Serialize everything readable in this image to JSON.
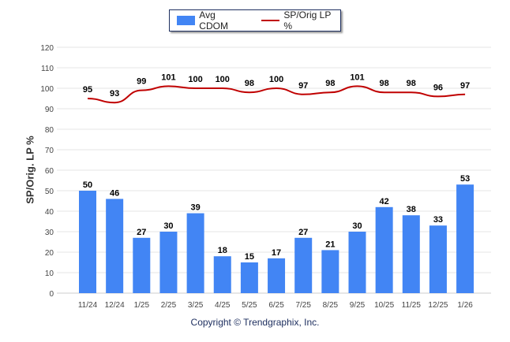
{
  "chart_data": {
    "type": "bar",
    "title": "",
    "xlabel": "",
    "ylabel": "SP/Orig. LP %",
    "ylim": [
      0,
      120
    ],
    "yticks": [
      0,
      10,
      20,
      30,
      40,
      50,
      60,
      70,
      80,
      90,
      100,
      110,
      120
    ],
    "grid": true,
    "legend_placement": "top-center",
    "categories": [
      "11/24",
      "12/24",
      "1/25",
      "2/25",
      "3/25",
      "4/25",
      "5/25",
      "6/25",
      "7/25",
      "8/25",
      "9/25",
      "10/25",
      "11/25",
      "12/25",
      "1/26"
    ],
    "series": [
      {
        "name": "Avg CDOM",
        "type": "bar",
        "color": "#4285f4",
        "values": [
          50,
          46,
          27,
          30,
          39,
          18,
          15,
          17,
          27,
          21,
          30,
          42,
          38,
          33,
          53
        ]
      },
      {
        "name": "SP/Orig LP %",
        "type": "line",
        "color": "#c00000",
        "values": [
          95,
          93,
          99,
          101,
          100,
          100,
          98,
          100,
          97,
          98,
          101,
          98,
          98,
          96,
          97
        ]
      }
    ]
  },
  "footer": {
    "copyright": "Copyright © Trendgraphix, Inc."
  }
}
